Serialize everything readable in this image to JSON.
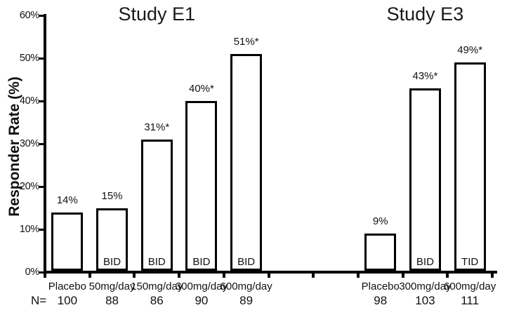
{
  "figure": {
    "background": "#ffffff",
    "ink": "#000000",
    "bar_fill": "#ffffff",
    "bar_border": "#000000"
  },
  "chart_data": {
    "type": "bar",
    "ylabel": "Responder Rate (%)",
    "xlabel": "",
    "title": "",
    "n_prefix": "N=",
    "ylim": [
      0,
      60
    ],
    "grid": false,
    "legend": false,
    "yticks": [
      {
        "value": 0,
        "label": "0%"
      },
      {
        "value": 10,
        "label": "10%"
      },
      {
        "value": 20,
        "label": "20%"
      },
      {
        "value": 30,
        "label": "30%"
      },
      {
        "value": 40,
        "label": "40%"
      },
      {
        "value": 50,
        "label": "50%"
      },
      {
        "value": 60,
        "label": "60%"
      }
    ],
    "gap_slots_between_groups": 2,
    "groups": [
      {
        "title": "Study E1",
        "bars": [
          {
            "category": "Placebo",
            "value": 14,
            "value_label": "14%",
            "regimen": "",
            "n": "100"
          },
          {
            "category": "50mg/day",
            "value": 15,
            "value_label": "15%",
            "regimen": "BID",
            "n": "88"
          },
          {
            "category": "150mg/day",
            "value": 31,
            "value_label": "31%*",
            "regimen": "BID",
            "n": "86"
          },
          {
            "category": "300mg/day",
            "value": 40,
            "value_label": "40%*",
            "regimen": "BID",
            "n": "90"
          },
          {
            "category": "600mg/day",
            "value": 51,
            "value_label": "51%*",
            "regimen": "BID",
            "n": "89"
          }
        ]
      },
      {
        "title": "Study E3",
        "bars": [
          {
            "category": "Placebo",
            "value": 9,
            "value_label": "9%",
            "regimen": "",
            "n": "98"
          },
          {
            "category": "300mg/day",
            "value": 43,
            "value_label": "43%*",
            "regimen": "BID",
            "n": "103"
          },
          {
            "category": "600mg/day",
            "value": 49,
            "value_label": "49%*",
            "regimen": "TID",
            "n": "111"
          }
        ]
      }
    ]
  }
}
